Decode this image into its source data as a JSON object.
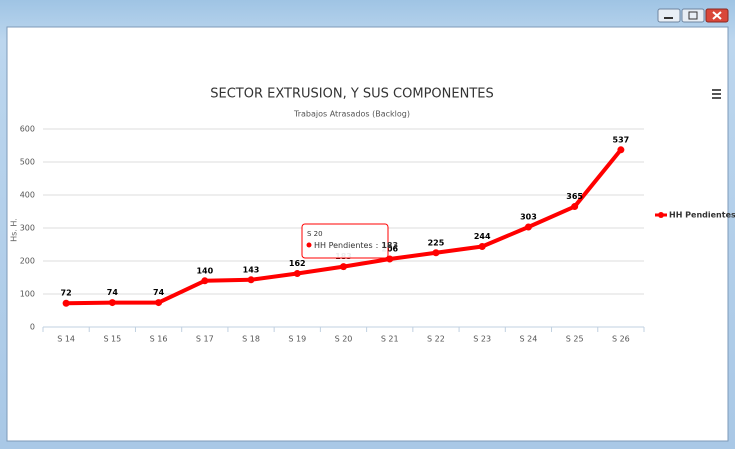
{
  "chart_data": {
    "type": "line",
    "title": "SECTOR EXTRUSION, Y SUS COMPONENTES",
    "subtitle": "Trabajos Atrasados (Backlog)",
    "y_label": "Hs. H.",
    "categories": [
      "S 14",
      "S 15",
      "S 16",
      "S 17",
      "S 18",
      "S 19",
      "S 20",
      "S 21",
      "S 22",
      "S 23",
      "S 24",
      "S 25",
      "S 26"
    ],
    "series": [
      {
        "name": "HH Pendientes",
        "color": "#ff0000",
        "values": [
          72,
          74,
          74,
          140,
          143,
          162,
          183,
          206,
          225,
          244,
          303,
          365,
          537
        ]
      }
    ],
    "ylim": [
      0,
      600
    ],
    "yticks": [
      0,
      100,
      200,
      300,
      400,
      500,
      600
    ],
    "grid": true,
    "legend": "right",
    "tooltip": {
      "header": "S 20",
      "label": "HH Pendientes",
      "separator": ":",
      "value": 183
    }
  }
}
